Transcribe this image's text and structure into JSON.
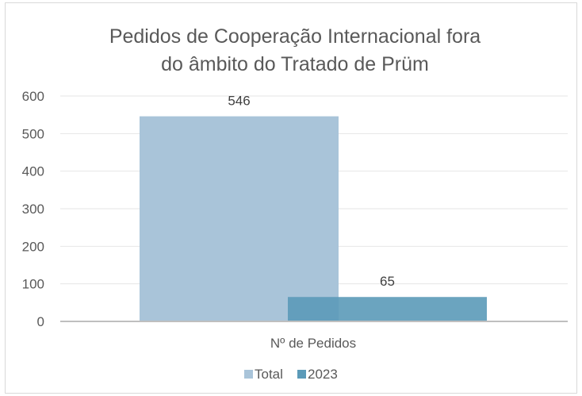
{
  "chart_data": {
    "type": "bar",
    "title": "Pedidos de Cooperação Internacional fora do âmbito do Tratado de Prüm",
    "title_lines": [
      "Pedidos de Cooperação Internacional fora",
      "do âmbito do Tratado de Prüm"
    ],
    "categories": [
      "Nº de Pedidos"
    ],
    "series": [
      {
        "name": "Total",
        "values": [
          546
        ],
        "color": "#a9c4d9"
      },
      {
        "name": "2023",
        "values": [
          65
        ],
        "color": "#5b9ab8"
      }
    ],
    "overlap": true,
    "ylim": [
      0,
      600
    ],
    "yticks": [
      0,
      100,
      200,
      300,
      400,
      500,
      600
    ],
    "ytick_labels": [
      "0",
      "100",
      "200",
      "300",
      "400",
      "500",
      "600"
    ],
    "data_labels": [
      "546",
      "65"
    ],
    "grid": true,
    "legend": "bottom",
    "xlabel": "",
    "ylabel": ""
  }
}
